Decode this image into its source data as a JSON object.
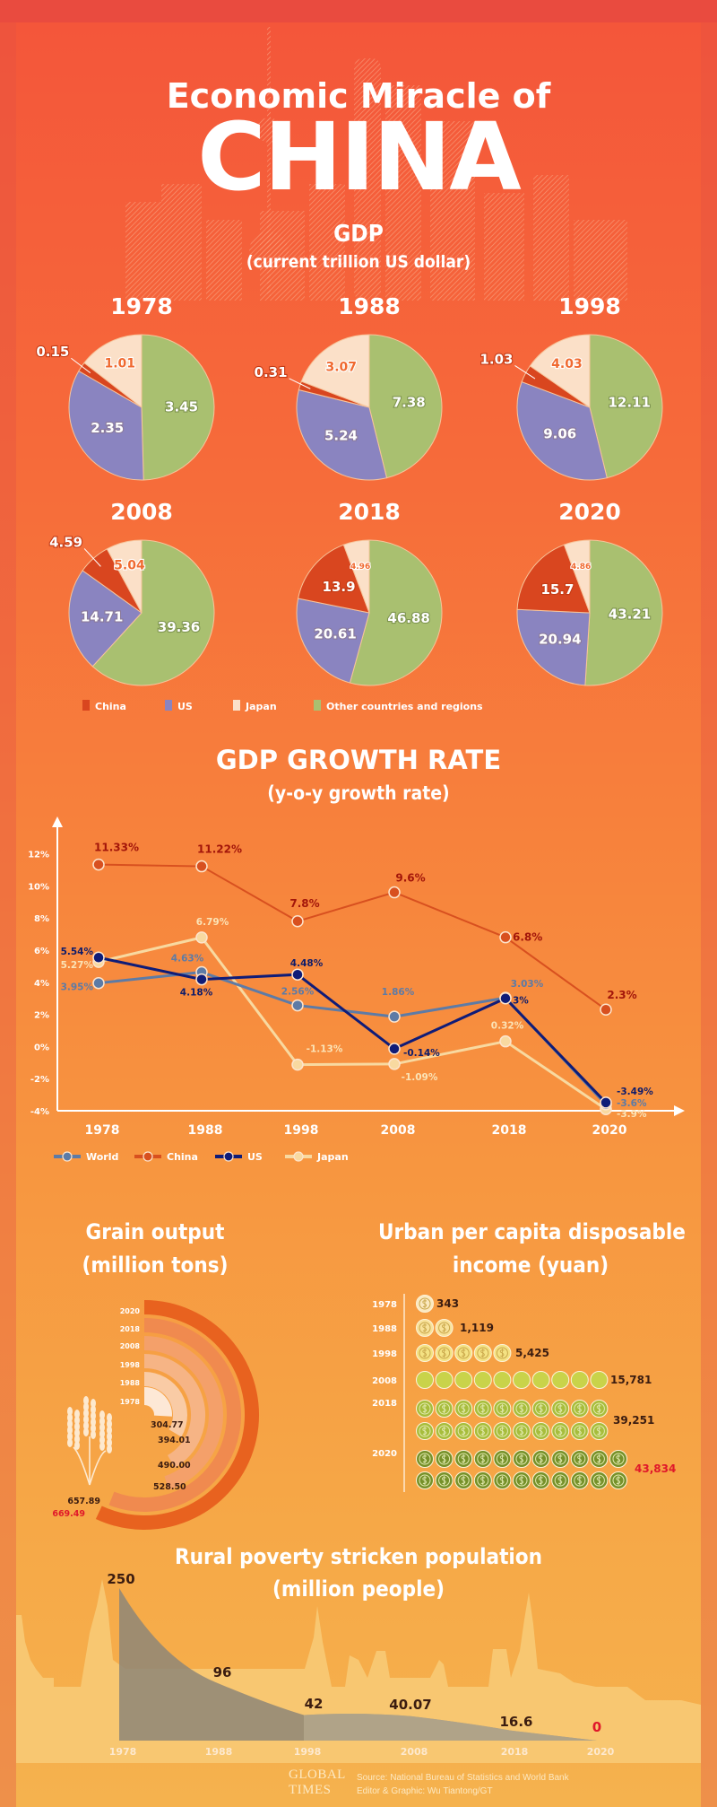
{
  "header": {
    "title_line1": "Economic Miracle of",
    "title_line2": "CHINA"
  },
  "gdp": {
    "title": "GDP",
    "subtitle": "(current trillion US dollar)",
    "legend": [
      {
        "label": "China",
        "color": "#d9461f"
      },
      {
        "label": "US",
        "color": "#8a84c0"
      },
      {
        "label": "Japan",
        "color": "#fbe0c8"
      },
      {
        "label": "Other countries and regions",
        "color": "#a9c070"
      }
    ]
  },
  "growth": {
    "title": "GDP GROWTH RATE",
    "subtitle": "(y-o-y growth rate)"
  },
  "grain": {
    "title": "Grain output",
    "subtitle": "(million tons)"
  },
  "income": {
    "title_line1": "Urban per capita disposable",
    "title_line2": "income (yuan)"
  },
  "poverty": {
    "title_line1": "Rural poverty stricken population",
    "title_line2": "(million people)"
  },
  "footer": {
    "logo_line1": "GLOBAL",
    "logo_line2": "TIMES",
    "source": "Source: National Bureau of Statistics and World Bank",
    "credit": "Editor & Graphic: Wu Tiantong/GT"
  },
  "chart_data": [
    {
      "type": "pie",
      "title": "1978",
      "categories": [
        "China",
        "US",
        "Japan",
        "Other countries and regions"
      ],
      "values": [
        0.15,
        2.35,
        1.01,
        3.45
      ],
      "labels": [
        "0.15",
        "2.35",
        "1.01",
        "3.45"
      ]
    },
    {
      "type": "pie",
      "title": "1988",
      "categories": [
        "China",
        "US",
        "Japan",
        "Other countries and regions"
      ],
      "values": [
        0.31,
        5.24,
        3.07,
        7.38
      ],
      "labels": [
        "0.31",
        "5.24",
        "3.07",
        "7.38"
      ]
    },
    {
      "type": "pie",
      "title": "1998",
      "categories": [
        "China",
        "US",
        "Japan",
        "Other countries and regions"
      ],
      "values": [
        1.03,
        9.06,
        4.03,
        12.11
      ],
      "labels": [
        "1.03",
        "9.06",
        "4.03",
        "12.11"
      ]
    },
    {
      "type": "pie",
      "title": "2008",
      "categories": [
        "China",
        "US",
        "Japan",
        "Other countries and regions"
      ],
      "values": [
        4.59,
        14.71,
        5.04,
        39.36
      ],
      "labels": [
        "4.59",
        "14.71",
        "5.04",
        "39.36"
      ]
    },
    {
      "type": "pie",
      "title": "2018",
      "categories": [
        "China",
        "US",
        "Japan",
        "Other countries and regions"
      ],
      "values": [
        13.9,
        20.61,
        4.96,
        46.88
      ],
      "labels": [
        "13.9",
        "20.61",
        "4.96",
        "46.88"
      ]
    },
    {
      "type": "pie",
      "title": "2020",
      "categories": [
        "China",
        "US",
        "Japan",
        "Other countries and regions"
      ],
      "values": [
        15.7,
        20.94,
        4.86,
        43.21
      ],
      "labels": [
        "15.7",
        "20.94",
        "4.86",
        "43.21"
      ]
    },
    {
      "type": "line",
      "title": "GDP GROWTH RATE",
      "subtitle": "(y-o-y growth rate)",
      "x": [
        "1978",
        "1988",
        "1998",
        "2008",
        "2018",
        "2020"
      ],
      "yticks": [
        "12%",
        "10%",
        "8%",
        "6%",
        "4%",
        "2%",
        "0%",
        "-2%",
        "-4%"
      ],
      "ylim": [
        -4,
        12
      ],
      "grid": false,
      "legend": "bottom-left",
      "series": [
        {
          "name": "World",
          "color": "#5d7ba6",
          "label_color": "#5d7ba6",
          "values": [
            3.95,
            4.63,
            2.56,
            1.86,
            3.03,
            -3.6
          ],
          "labels": [
            "3.95%",
            "4.63%",
            "2.56%",
            "1.86%",
            "3.03%",
            "-3.6%"
          ]
        },
        {
          "name": "China",
          "color": "#d8501f",
          "label_color": "#a3160a",
          "values": [
            11.33,
            11.22,
            7.8,
            9.6,
            6.8,
            2.3
          ],
          "labels": [
            "11.33%",
            "11.22%",
            "7.8%",
            "9.6%",
            "6.8%",
            "2.3%"
          ]
        },
        {
          "name": "US",
          "color": "#0f1c78",
          "label_color": "#0f1c6a",
          "values": [
            5.54,
            4.18,
            4.48,
            -0.14,
            3,
            -3.49
          ],
          "labels": [
            "5.54%",
            "4.18%",
            "4.48%",
            "-0.14%",
            "3%",
            "-3.49%"
          ]
        },
        {
          "name": "Japan",
          "color": "#f8d9a0",
          "label_color": "#fbe3b6",
          "values": [
            5.27,
            6.79,
            -1.13,
            -1.09,
            0.32,
            -3.9
          ],
          "labels": [
            "5.27%",
            "6.79%",
            "-1.13%",
            "-1.09%",
            "0.32%",
            "-3.9%"
          ]
        }
      ]
    },
    {
      "type": "bar",
      "title": "Grain output",
      "subtitle": "(million tons)",
      "categories": [
        "1978",
        "1988",
        "1998",
        "2008",
        "2018",
        "2020"
      ],
      "values": [
        304.77,
        394.01,
        490.0,
        528.5,
        657.89,
        669.49
      ],
      "labels": [
        "304.77",
        "394.01",
        "490.00",
        "528.50",
        "657.89",
        "669.49"
      ],
      "colors": [
        "#fde8d6",
        "#f9cba5",
        "#f6b485",
        "#f4a06a",
        "#f08a4f",
        "#e8621f"
      ],
      "highlight_color": "#e0182a"
    },
    {
      "type": "bar",
      "title": "Urban per capita disposable income (yuan)",
      "categories": [
        "1978",
        "1988",
        "1998",
        "2008",
        "2018",
        "2020"
      ],
      "values": [
        343,
        1119,
        5425,
        15781,
        39251,
        43834
      ],
      "labels": [
        "343",
        "1,119",
        "5,425",
        "15,781",
        "39,251",
        "43,834"
      ],
      "coins": [
        1,
        2,
        5,
        10,
        20,
        22
      ],
      "colors": [
        "#fbe9c0",
        "#f8e29a",
        "#f4e283",
        "#c9d34a",
        "#a7bd3c",
        "#76912a"
      ],
      "highlight_color": "#e0182a"
    },
    {
      "type": "area",
      "title": "Rural poverty stricken population",
      "subtitle": "(million people)",
      "categories": [
        "1978",
        "1988",
        "1998",
        "2008",
        "2018",
        "2020"
      ],
      "values": [
        250,
        96,
        42,
        40.07,
        16.6,
        0
      ],
      "labels": [
        "250",
        "96",
        "42",
        "40.07",
        "16.6",
        "0"
      ],
      "highlight_color": "#e0182a"
    }
  ]
}
